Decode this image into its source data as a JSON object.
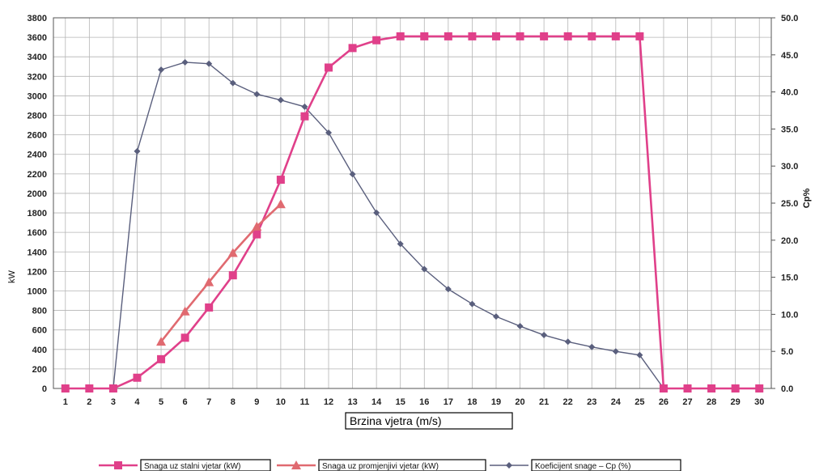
{
  "chart_data": {
    "type": "line",
    "xlabel": "Brzina vjetra (m/s)",
    "ylabel_left": "kW",
    "ylabel_right": "Cp%",
    "x": [
      1,
      2,
      3,
      4,
      5,
      6,
      7,
      8,
      9,
      10,
      11,
      12,
      13,
      14,
      15,
      16,
      17,
      18,
      19,
      20,
      21,
      22,
      23,
      24,
      25,
      26,
      27,
      28,
      29,
      30
    ],
    "ylim_left": [
      0,
      3800
    ],
    "yticks_left": [
      "0",
      "200",
      "400",
      "600",
      "800",
      "1000",
      "1200",
      "1400",
      "1600",
      "1800",
      "2000",
      "2200",
      "2400",
      "2600",
      "2800",
      "3000",
      "3200",
      "3400",
      "3600",
      "3800"
    ],
    "ylim_right": [
      0,
      50
    ],
    "yticks_right": [
      "0.0",
      "5.0",
      "10.0",
      "15.0",
      "20.0",
      "25.0",
      "30.0",
      "35.0",
      "40.0",
      "45.0",
      "50.0"
    ],
    "grid": true,
    "legend_position": "bottom",
    "series": [
      {
        "name": "Snaga uz stalni vjetar (kW)",
        "axis": "left",
        "color": "#e0408a",
        "marker": "square",
        "x": [
          1,
          2,
          3,
          4,
          5,
          6,
          7,
          8,
          9,
          10,
          11,
          12,
          13,
          14,
          15,
          16,
          17,
          18,
          19,
          20,
          21,
          22,
          23,
          24,
          25,
          26,
          27,
          28,
          29,
          30
        ],
        "values": [
          0,
          0,
          0,
          110,
          300,
          520,
          830,
          1160,
          1580,
          2140,
          2790,
          3290,
          3490,
          3570,
          3610,
          3610,
          3610,
          3610,
          3610,
          3610,
          3610,
          3610,
          3610,
          3610,
          3610,
          0,
          0,
          0,
          0,
          0
        ]
      },
      {
        "name": "Snaga uz promjenjivi vjetar (kW)",
        "axis": "left",
        "color": "#e06a70",
        "marker": "triangle",
        "x": [
          5,
          6,
          7,
          8,
          9,
          10
        ],
        "values": [
          480,
          790,
          1090,
          1390,
          1660,
          1890
        ]
      },
      {
        "name": "Koeficijent snage – Cp (%)",
        "axis": "right",
        "color": "#5a5f7d",
        "marker": "diamond",
        "x": [
          3,
          4,
          5,
          6,
          7,
          8,
          9,
          10,
          11,
          12,
          13,
          14,
          15,
          16,
          17,
          18,
          19,
          20,
          21,
          22,
          23,
          24,
          25,
          26
        ],
        "values": [
          0,
          32.0,
          43.0,
          44.0,
          43.8,
          41.2,
          39.7,
          38.9,
          38.0,
          34.5,
          28.9,
          23.7,
          19.5,
          16.1,
          13.4,
          11.4,
          9.7,
          8.4,
          7.2,
          6.3,
          5.6,
          5.0,
          4.5,
          0
        ]
      }
    ]
  }
}
